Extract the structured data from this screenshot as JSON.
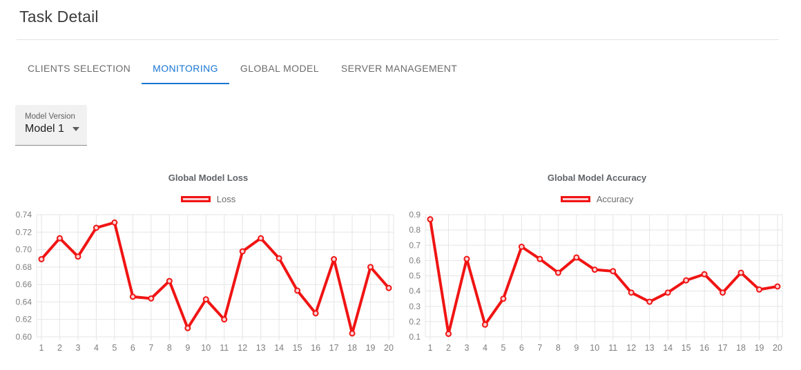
{
  "header": {
    "title": "Task Detail"
  },
  "tabs": {
    "items": [
      {
        "label": "CLIENTS SELECTION",
        "active": false
      },
      {
        "label": "MONITORING",
        "active": true
      },
      {
        "label": "GLOBAL MODEL",
        "active": false
      },
      {
        "label": "SERVER MANAGEMENT",
        "active": false
      }
    ]
  },
  "model_select": {
    "label": "Model Version",
    "value": "Model 1",
    "dropdown_icon": "caret-down"
  },
  "colors": {
    "accent_blue": "#1a76d2",
    "series_red": "#f01413",
    "legend_fill": "#f8d3d5",
    "grid": "#e5e5e5",
    "axis_text": "#7d7d7d"
  },
  "chart_data": [
    {
      "type": "line",
      "title": "Global Model Loss",
      "legend_label": "Loss",
      "legend_position": "top",
      "grid": true,
      "x": [
        "1",
        "2",
        "3",
        "4",
        "5",
        "6",
        "7",
        "8",
        "9",
        "10",
        "11",
        "12",
        "13",
        "14",
        "15",
        "16",
        "17",
        "18",
        "19",
        "20"
      ],
      "values": [
        0.689,
        0.713,
        0.692,
        0.725,
        0.731,
        0.646,
        0.644,
        0.664,
        0.61,
        0.643,
        0.62,
        0.698,
        0.713,
        0.69,
        0.653,
        0.627,
        0.689,
        0.604,
        0.68,
        0.656
      ],
      "ylim": [
        0.6,
        0.74
      ],
      "yticks": [
        0.6,
        0.62,
        0.64,
        0.66,
        0.68,
        0.7,
        0.72,
        0.74
      ],
      "ytick_labels": [
        "0.60",
        "0.62",
        "0.64",
        "0.66",
        "0.68",
        "0.70",
        "0.72",
        "0.74"
      ],
      "xlabel": "",
      "ylabel": "",
      "line_color": "#f01413"
    },
    {
      "type": "line",
      "title": "Global Model Accuracy",
      "legend_label": "Accuracy",
      "legend_position": "top",
      "grid": true,
      "x": [
        "1",
        "2",
        "3",
        "4",
        "5",
        "6",
        "7",
        "8",
        "9",
        "10",
        "11",
        "12",
        "13",
        "14",
        "15",
        "16",
        "17",
        "18",
        "19",
        "20"
      ],
      "values": [
        0.87,
        0.12,
        0.61,
        0.18,
        0.35,
        0.69,
        0.61,
        0.52,
        0.62,
        0.54,
        0.53,
        0.39,
        0.33,
        0.39,
        0.47,
        0.51,
        0.39,
        0.52,
        0.41,
        0.43
      ],
      "ylim": [
        0.1,
        0.9
      ],
      "yticks": [
        0.1,
        0.2,
        0.3,
        0.4,
        0.5,
        0.6,
        0.7,
        0.8,
        0.9
      ],
      "ytick_labels": [
        "0.1",
        "0.2",
        "0.3",
        "0.4",
        "0.5",
        "0.6",
        "0.7",
        "0.8",
        "0.9"
      ],
      "xlabel": "",
      "ylabel": "",
      "line_color": "#f01413"
    }
  ]
}
